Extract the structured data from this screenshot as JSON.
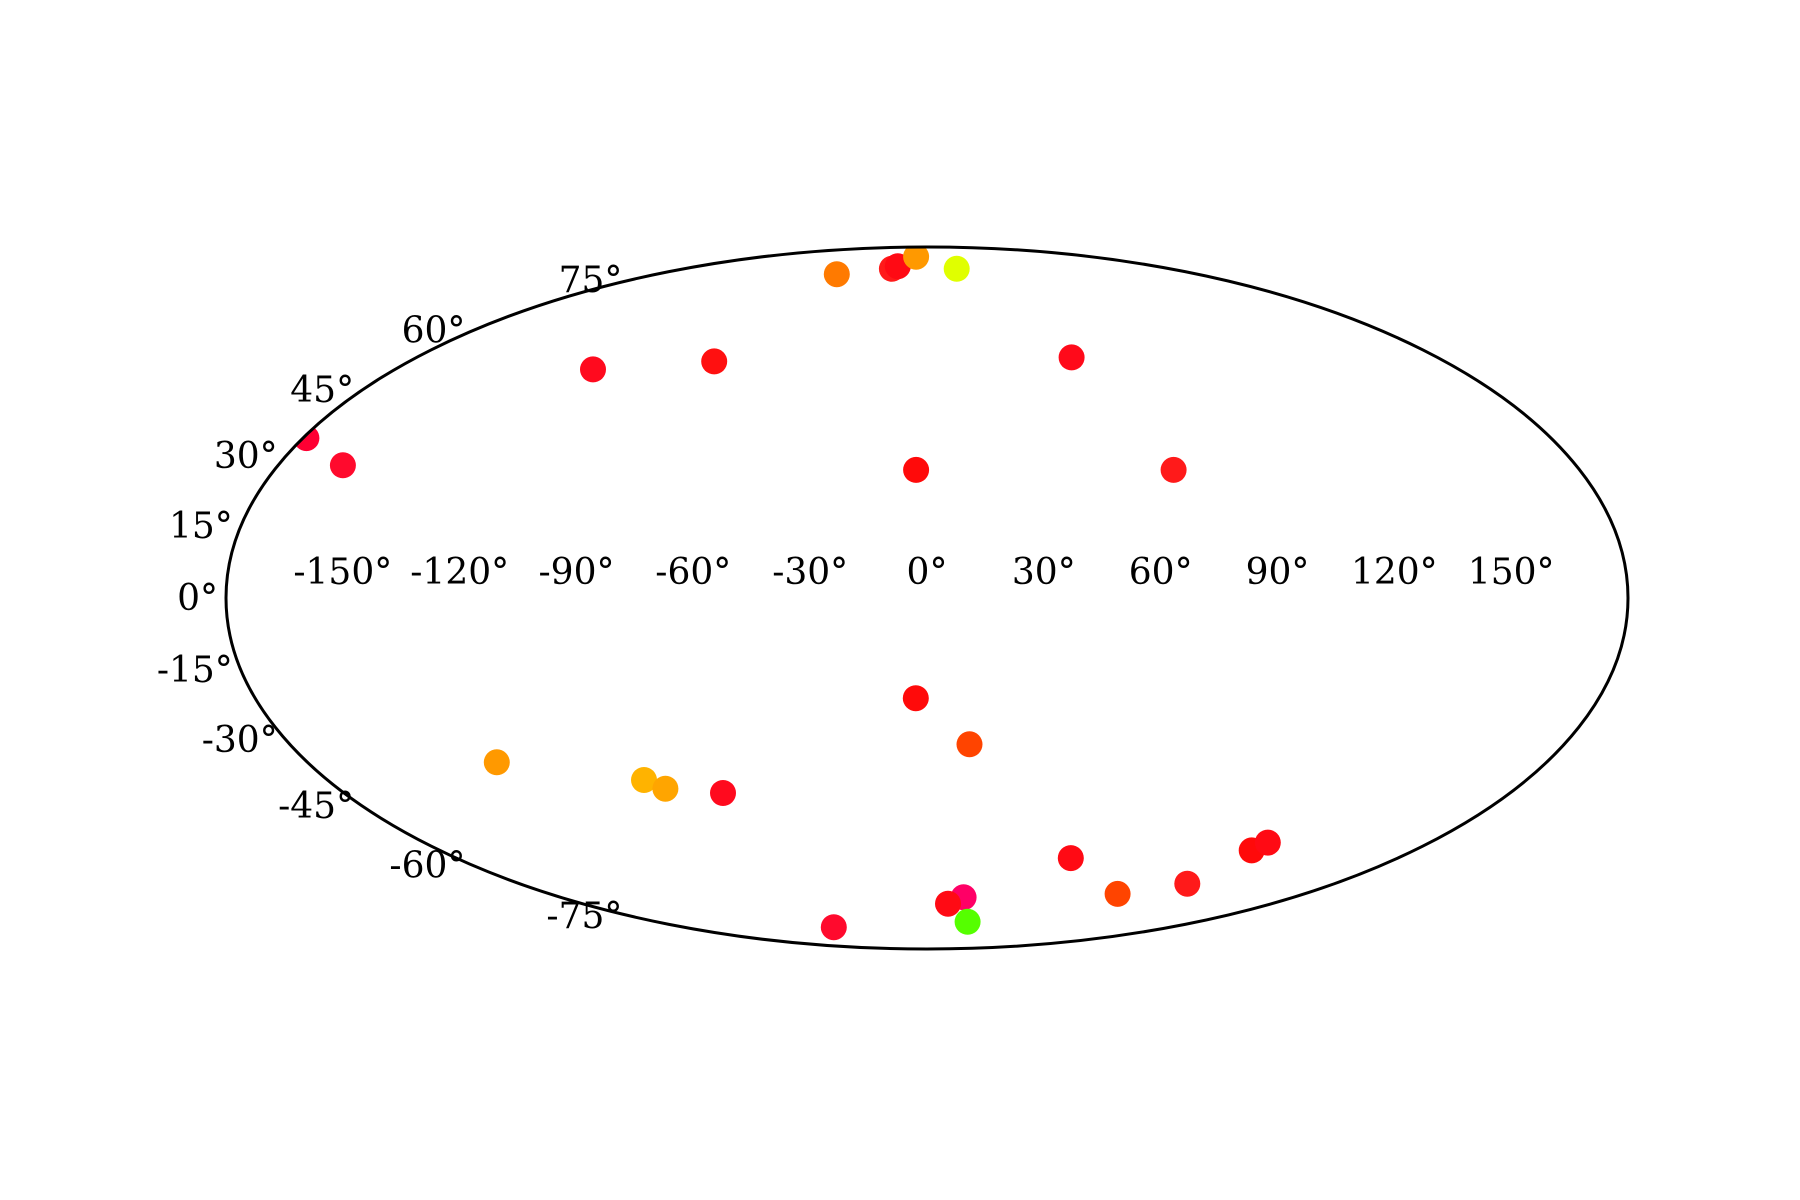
{
  "chart_data": {
    "type": "scatter",
    "projection": "mollweide",
    "title": "",
    "xlabel": "",
    "ylabel": "",
    "grid": false,
    "legend": false,
    "xlim": [
      -180,
      180
    ],
    "ylim": [
      -90,
      90
    ],
    "x_ticks": [
      {
        "value": -150,
        "label": "-150°"
      },
      {
        "value": -120,
        "label": "-120°"
      },
      {
        "value": -90,
        "label": "-90°"
      },
      {
        "value": -60,
        "label": "-60°"
      },
      {
        "value": -30,
        "label": "-30°"
      },
      {
        "value": 0,
        "label": "0°"
      },
      {
        "value": 30,
        "label": "30°"
      },
      {
        "value": 60,
        "label": "60°"
      },
      {
        "value": 90,
        "label": "90°"
      },
      {
        "value": 120,
        "label": "120°"
      },
      {
        "value": 150,
        "label": "150°"
      }
    ],
    "y_ticks": [
      {
        "value": 75,
        "label": "75°"
      },
      {
        "value": 60,
        "label": "60°"
      },
      {
        "value": 45,
        "label": "45°"
      },
      {
        "value": 30,
        "label": "30°"
      },
      {
        "value": 15,
        "label": "15°"
      },
      {
        "value": 0,
        "label": "0°"
      },
      {
        "value": -15,
        "label": "-15°"
      },
      {
        "value": -30,
        "label": "-30°"
      },
      {
        "value": -45,
        "label": "-45°"
      },
      {
        "value": -60,
        "label": "-60°"
      },
      {
        "value": -75,
        "label": "-75°"
      }
    ],
    "points": [
      {
        "lon": -179,
        "lat": 34,
        "color": "#ff0033"
      },
      {
        "lon": -162,
        "lat": 28,
        "color": "#ff0a2d"
      },
      {
        "lon": -113,
        "lat": 50,
        "color": "#ff0a1e"
      },
      {
        "lon": -74,
        "lat": 52,
        "color": "#ff1010"
      },
      {
        "lon": -60,
        "lat": 77,
        "color": "#ff7a00"
      },
      {
        "lon": -26,
        "lat": 79,
        "color": "#ff1a1a"
      },
      {
        "lon": -23,
        "lat": 80,
        "color": "#ff0a14"
      },
      {
        "lon": -12,
        "lat": 84,
        "color": "#ff9900"
      },
      {
        "lon": 22,
        "lat": 79,
        "color": "#e0ff00"
      },
      {
        "lon": 51,
        "lat": 53,
        "color": "#ff0a1a"
      },
      {
        "lon": -3,
        "lat": 27,
        "color": "#ff0a0a"
      },
      {
        "lon": 68,
        "lat": 27,
        "color": "#ff1a1a"
      },
      {
        "lon": -3,
        "lat": -21,
        "color": "#ff0a0a"
      },
      {
        "lon": 12,
        "lat": -31,
        "color": "#ff4400"
      },
      {
        "lon": -125,
        "lat": -35,
        "color": "#ff9900"
      },
      {
        "lon": -85,
        "lat": -39,
        "color": "#ffb300"
      },
      {
        "lon": -80,
        "lat": -41,
        "color": "#ffa500"
      },
      {
        "lon": -63,
        "lat": -42,
        "color": "#ff0a1e"
      },
      {
        "lon": 55,
        "lat": -58,
        "color": "#ff0a14"
      },
      {
        "lon": 120,
        "lat": -56,
        "color": "#ff0a0a"
      },
      {
        "lon": 122,
        "lat": -54,
        "color": "#ff0a14"
      },
      {
        "lon": 115,
        "lat": -65,
        "color": "#ff1a1a"
      },
      {
        "lon": 91,
        "lat": -68,
        "color": "#ff4400"
      },
      {
        "lon": 18,
        "lat": -69,
        "color": "#ff0066"
      },
      {
        "lon": 11,
        "lat": -71,
        "color": "#ff0a14"
      },
      {
        "lon": 27,
        "lat": -77,
        "color": "#55ff00"
      },
      {
        "lon": -69,
        "lat": -79,
        "color": "#ff0a2d"
      }
    ]
  }
}
